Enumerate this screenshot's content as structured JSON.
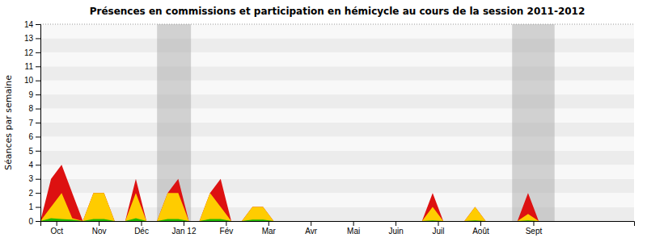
{
  "chart_data": {
    "type": "area",
    "title": "Présences en commissions et participation en hémicycle au cours de la session 2011-2012",
    "y_label": "Séances par semaine",
    "x": [
      0,
      1,
      2,
      3,
      4,
      5,
      6,
      7,
      8,
      9,
      10,
      11,
      12,
      13,
      14,
      15,
      16,
      17,
      18,
      19,
      20,
      21,
      22,
      23,
      24,
      25,
      26,
      27,
      28,
      29,
      30,
      31,
      32,
      33,
      34,
      35,
      36,
      37,
      38,
      39,
      40,
      41,
      42,
      43,
      44,
      45,
      46,
      47,
      48,
      49,
      50,
      51,
      52,
      53,
      54,
      55
    ],
    "xlim": [
      0,
      56
    ],
    "xticks": [
      {
        "value": 1.5,
        "label": "Oct"
      },
      {
        "value": 5.5,
        "label": "Nov"
      },
      {
        "value": 9.5,
        "label": "Déc"
      },
      {
        "value": 13.5,
        "label": "Jan 12"
      },
      {
        "value": 17.5,
        "label": "Fév"
      },
      {
        "value": 21.5,
        "label": "Mar"
      },
      {
        "value": 25.5,
        "label": "Avr"
      },
      {
        "value": 29.5,
        "label": "Mai"
      },
      {
        "value": 33.5,
        "label": "Juin"
      },
      {
        "value": 37.5,
        "label": "Juil"
      },
      {
        "value": 41.5,
        "label": "Août"
      },
      {
        "value": 46.5,
        "label": "Sept"
      }
    ],
    "ylim": [
      0,
      14
    ],
    "yticks": [
      0,
      1,
      2,
      3,
      4,
      5,
      6,
      7,
      8,
      9,
      10,
      11,
      12,
      13,
      14
    ],
    "grid": true,
    "bands": [
      [
        11.0,
        14.2
      ],
      [
        44.5,
        48.5
      ]
    ],
    "series": [
      {
        "color": "#dd1111",
        "values": [
          0,
          3,
          4,
          2,
          0,
          2,
          2,
          0,
          0,
          3,
          0,
          0,
          2,
          3,
          0,
          0,
          2,
          3,
          0,
          0,
          1,
          1,
          0,
          0,
          0,
          0,
          0,
          0,
          0,
          0,
          0,
          0,
          0,
          0,
          0,
          0,
          0,
          2,
          0,
          0,
          0,
          1,
          0,
          0,
          0,
          0,
          2,
          0,
          0,
          0,
          0,
          0,
          0,
          0,
          0,
          0
        ]
      },
      {
        "color": "#ffcc00",
        "values": [
          0,
          1,
          2,
          0.2,
          0,
          2,
          2,
          0,
          0,
          2,
          0,
          0,
          2,
          2,
          0,
          0,
          2,
          1,
          0,
          0,
          1,
          1,
          0,
          0,
          0,
          0,
          0,
          0,
          0,
          0,
          0,
          0,
          0,
          0,
          0,
          0,
          0,
          1,
          0,
          0,
          0,
          1,
          0,
          0,
          0,
          0,
          0.5,
          0,
          0,
          0,
          0,
          0,
          0,
          0,
          0,
          0
        ]
      },
      {
        "color": "#22bb00",
        "values": [
          0,
          0.2,
          0.15,
          0.1,
          0,
          0.15,
          0.15,
          0,
          0,
          0.2,
          0,
          0,
          0.15,
          0.15,
          0,
          0,
          0.15,
          0.15,
          0,
          0,
          0.1,
          0.1,
          0,
          0,
          0,
          0,
          0,
          0,
          0,
          0,
          0,
          0,
          0,
          0,
          0,
          0,
          0,
          0.05,
          0,
          0,
          0,
          0.05,
          0,
          0,
          0,
          0,
          0.05,
          0,
          0,
          0,
          0,
          0,
          0,
          0,
          0,
          0
        ]
      }
    ]
  }
}
